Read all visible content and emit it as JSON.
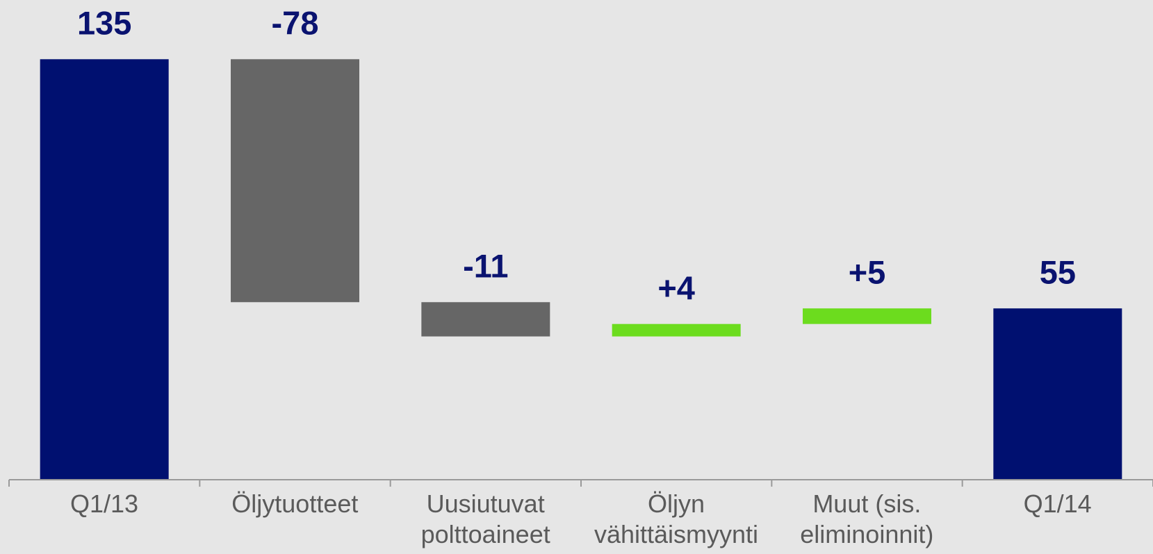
{
  "chart_data": {
    "type": "waterfall",
    "categories": [
      "Q1/13",
      "Öljytuotteet",
      "Uusiutuvat\npolttoaineet",
      "Öljyn\nvähittäismyynti",
      "Muut (sis.\neliminoinnit)",
      "Q1/14"
    ],
    "values": [
      135,
      -78,
      -11,
      4,
      5,
      55
    ],
    "value_labels": [
      "135",
      "-78",
      "-11",
      "+4",
      "+5",
      "55"
    ],
    "measure": [
      "absolute",
      "relative",
      "relative",
      "relative",
      "relative",
      "absolute"
    ],
    "colors": {
      "absolute": "#001070",
      "decrease": "#666666",
      "increase": "#6cdc1e"
    },
    "ylim": [
      0,
      150
    ]
  }
}
